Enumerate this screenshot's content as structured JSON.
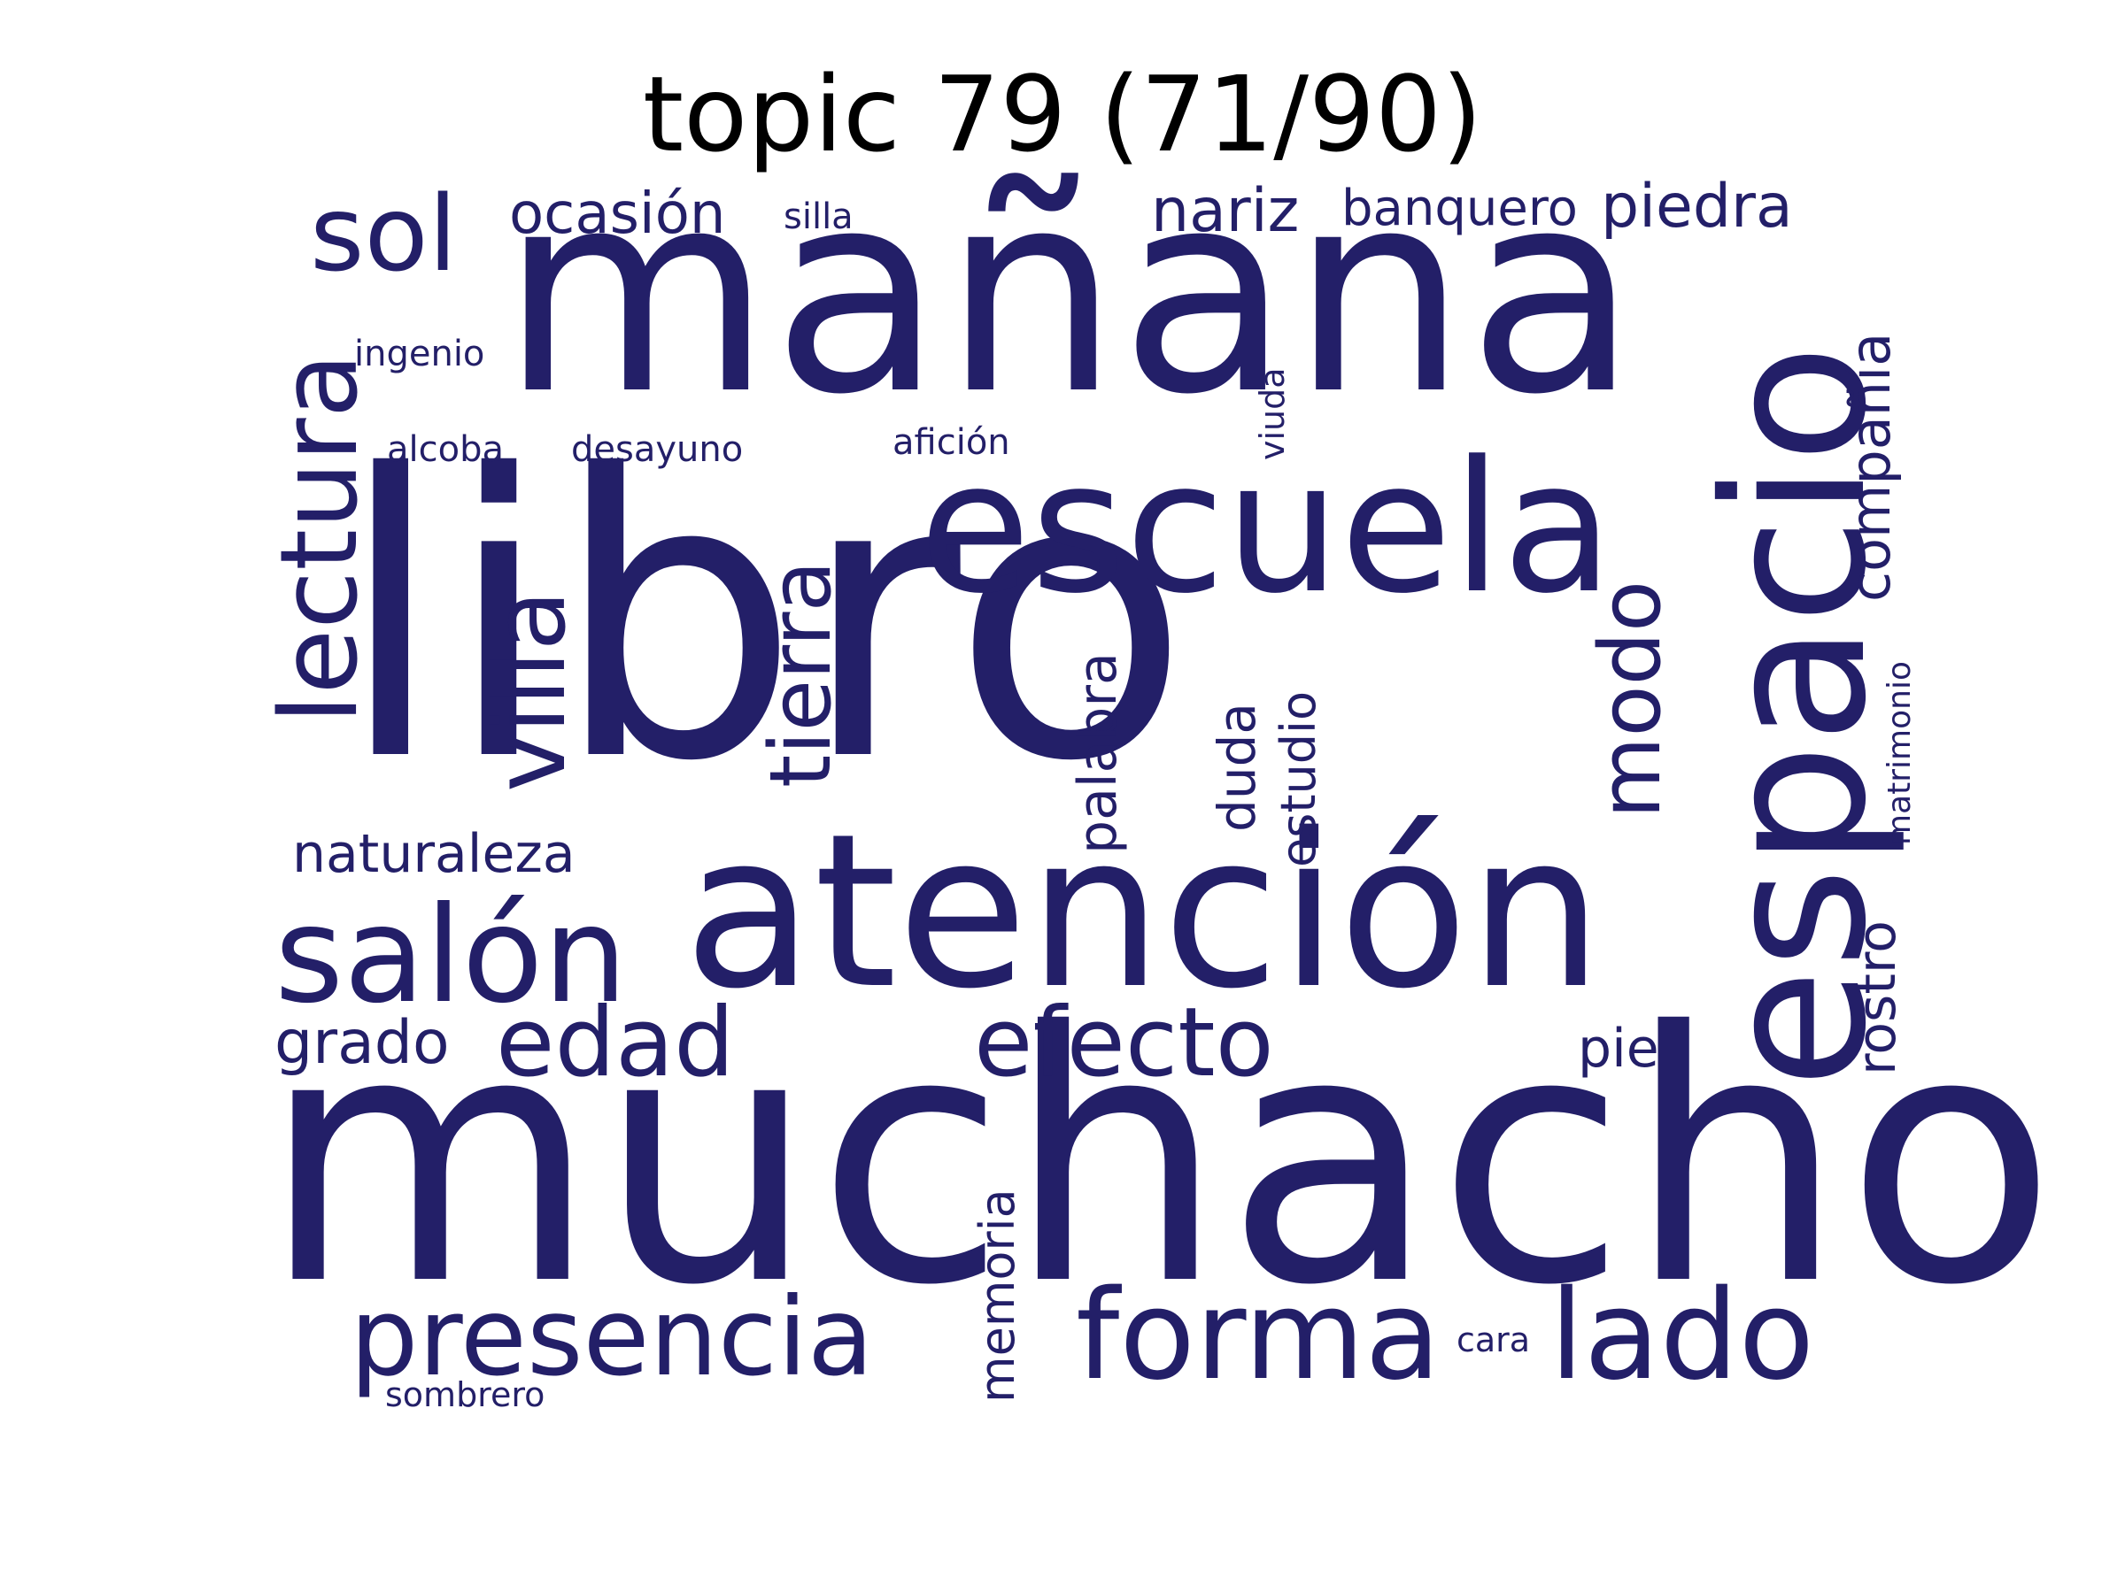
{
  "title": "topic 79 (71/90)",
  "word_color": "#231f68",
  "words": {
    "libro": "libro",
    "muchacho": "muchacho",
    "manana": "mañana",
    "espacio": "espacio",
    "atencion": "atención",
    "escuela": "escuela",
    "lectura": "lectura",
    "salon": "salón",
    "villa": "villa",
    "tierra": "tierra",
    "modo": "modo",
    "compania": "compañía",
    "sol": "sol",
    "ocasion": "ocasión",
    "silla": "silla",
    "nariz": "nariz",
    "banquero": "banquero",
    "piedra": "piedra",
    "ingenio": "ingenio",
    "viuda": "viuda",
    "alcoba": "alcoba",
    "desayuno": "desayuno",
    "aficion": "afición",
    "palabra": "palabra",
    "duda": "duda",
    "estudio": "estudio",
    "matrimonio": "matrimonio",
    "naturaleza": "naturaleza",
    "rostro": "rostro",
    "edad": "edad",
    "efecto": "efecto",
    "grado": "grado",
    "pie": "pie",
    "presencia": "presencia",
    "forma": "forma",
    "lado": "lado",
    "memoria": "memoria",
    "cara": "cara",
    "sombrero": "sombrero"
  }
}
